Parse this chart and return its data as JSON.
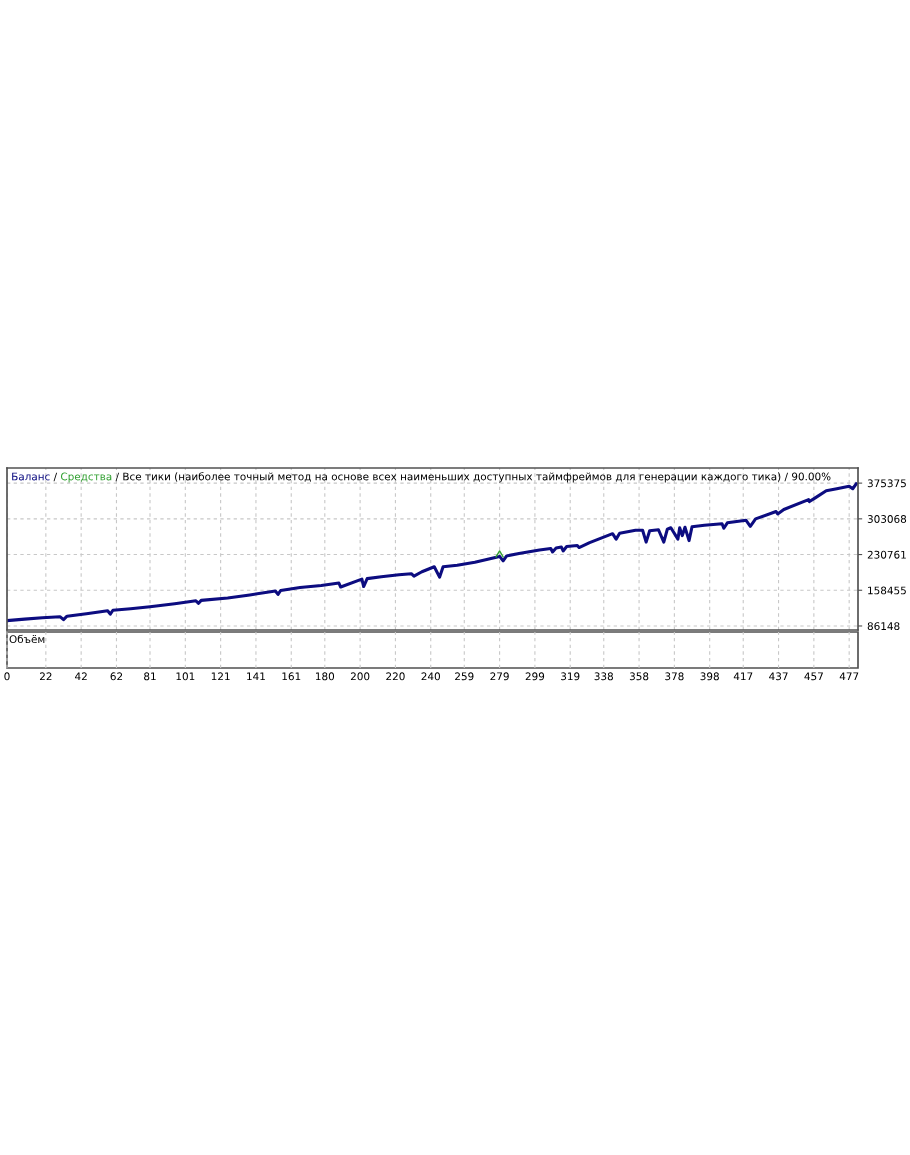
{
  "chart_data": {
    "type": "line",
    "title": "/ Все тики (наиболее точный метод на основе всех наименьших доступных таймфреймов для генерации каждого тика) / 90.00%",
    "series": [
      {
        "name": "Баланс",
        "color": "#0c0c80",
        "x": [
          0,
          10,
          20,
          30,
          32,
          34,
          45,
          57,
          58.5,
          60,
          70,
          81,
          95,
          107,
          108.5,
          110,
          125,
          137.5,
          152,
          153.5,
          155,
          166,
          178,
          188,
          189,
          201,
          202,
          204,
          212,
          222,
          229,
          230.5,
          235,
          242,
          245,
          247,
          255,
          265,
          279,
          281,
          283,
          290,
          301.6,
          308,
          309,
          311,
          314,
          315,
          317,
          323,
          324,
          330,
          343,
          345,
          347,
          356,
          360,
          362,
          364,
          369,
          372,
          374,
          376,
          380,
          381,
          382.5,
          384,
          386.3,
          388,
          395,
          405,
          406,
          408,
          418.6,
          421,
          424,
          435.6,
          436.5,
          440,
          454,
          454.5,
          458,
          464,
          470,
          477,
          479,
          481
        ],
        "values": [
          97000,
          100000,
          103000,
          105000,
          99000,
          106000,
          111000,
          117000,
          110000,
          118000,
          121000,
          125000,
          131000,
          137000,
          132000,
          138000,
          143000,
          149000,
          157000,
          150000,
          158000,
          164000,
          168000,
          173000,
          165000,
          181000,
          166000,
          182000,
          186000,
          190000,
          192000,
          187000,
          196000,
          206000,
          185000,
          206000,
          209000,
          215000,
          227000,
          218000,
          228000,
          233000,
          240000,
          243000,
          236000,
          244000,
          246000,
          238000,
          247000,
          249000,
          245000,
          255000,
          273000,
          262000,
          274000,
          280000,
          280000,
          256000,
          279000,
          281000,
          256000,
          282000,
          285000,
          262000,
          285000,
          269000,
          286000,
          259000,
          287000,
          290000,
          293000,
          284000,
          295000,
          300000,
          288000,
          303000,
          318000,
          313000,
          322000,
          342000,
          338000,
          346000,
          360000,
          364000,
          369000,
          364000,
          374000
        ]
      },
      {
        "name": "Средства",
        "color": "#2e9e2e",
        "x": [
          277,
          279,
          281
        ],
        "values": [
          226000,
          238000,
          226000
        ]
      }
    ],
    "xlim": [
      0,
      482
    ],
    "xticks": [
      0,
      22,
      42,
      62,
      81,
      101,
      121,
      141,
      161,
      180,
      200,
      220,
      240,
      259,
      279,
      299,
      319,
      338,
      358,
      378,
      398,
      417,
      437,
      457,
      477
    ],
    "ylim": [
      78000,
      406000
    ],
    "yticks": [
      86148,
      158455,
      230761,
      303068,
      375375
    ],
    "grid": true,
    "legend": "top left",
    "marker": "none",
    "line_style": "solid",
    "annotations": [
      "/",
      "Объём"
    ]
  }
}
